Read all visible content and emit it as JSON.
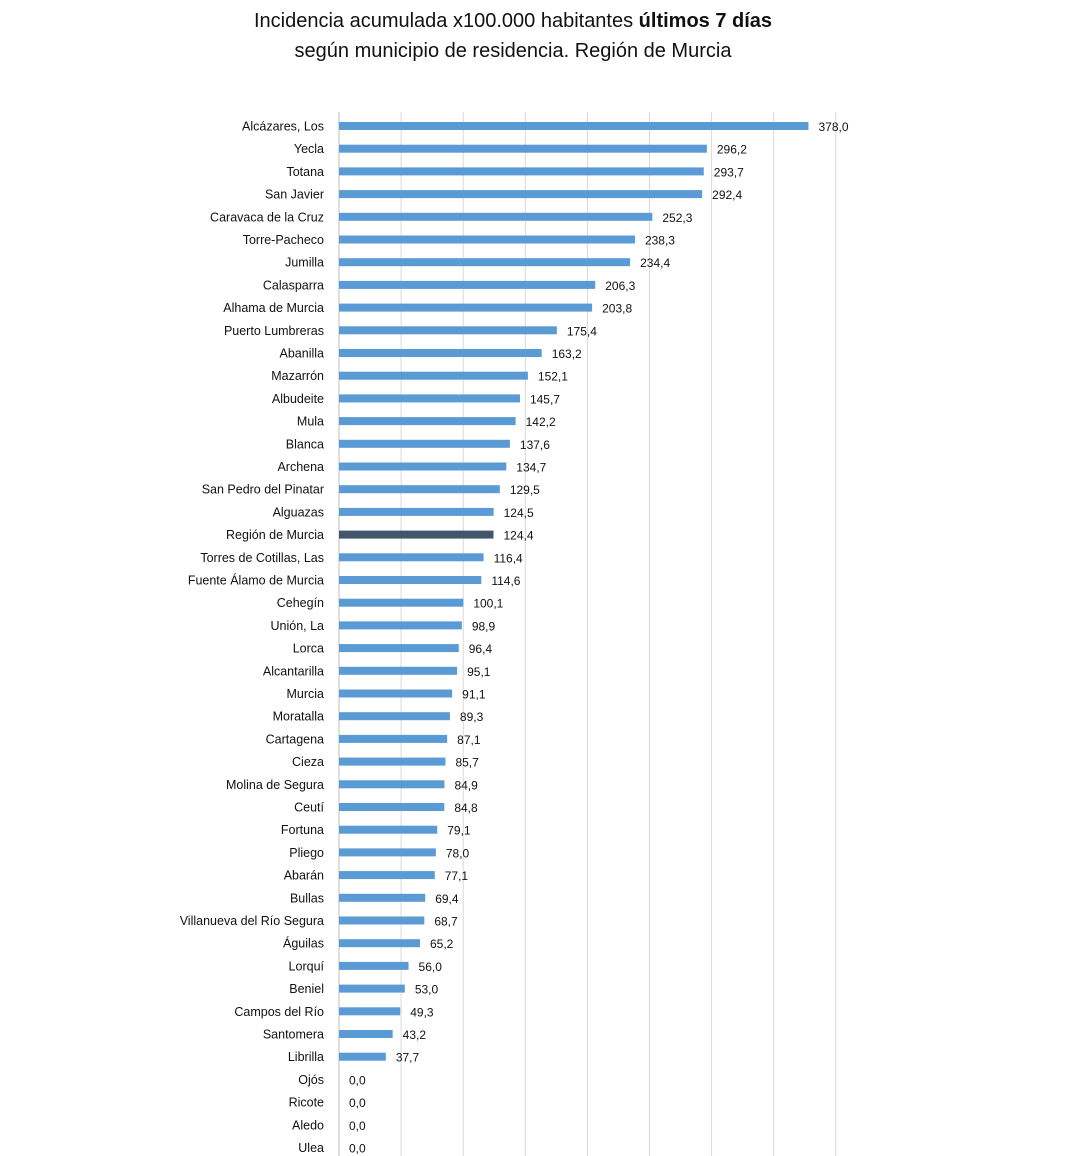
{
  "chart_data": {
    "type": "bar",
    "orientation": "horizontal",
    "title": {
      "prefix": "Incidencia acumulada x100.000 habitantes ",
      "bold": "últimos 7 días",
      "line2": "según municipio de residencia. Región de Murcia"
    },
    "xlabel": "",
    "ylabel": "",
    "xlim": [
      0,
      400
    ],
    "grid": true,
    "highlight_category": "Región de Murcia",
    "colors": {
      "bar": "#5b9bd5",
      "highlight": "#44546a",
      "grid": "#d9d9d9"
    },
    "categories": [
      "Alcázares, Los",
      "Yecla",
      "Totana",
      "San Javier",
      "Caravaca de la Cruz",
      "Torre-Pacheco",
      "Jumilla",
      "Calasparra",
      "Alhama de Murcia",
      "Puerto Lumbreras",
      "Abanilla",
      "Mazarrón",
      "Albudeite",
      "Mula",
      "Blanca",
      "Archena",
      "San Pedro del Pinatar",
      "Alguazas",
      "Región de Murcia",
      "Torres de Cotillas, Las",
      "Fuente Álamo de Murcia",
      "Cehegín",
      "Unión, La",
      "Lorca",
      "Alcantarilla",
      "Murcia",
      "Moratalla",
      "Cartagena",
      "Cieza",
      "Molina de Segura",
      "Ceutí",
      "Fortuna",
      "Pliego",
      "Abarán",
      "Bullas",
      "Villanueva del Río Segura",
      "Águilas",
      "Lorquí",
      "Beniel",
      "Campos del Río",
      "Santomera",
      "Librilla",
      "Ojós",
      "Ricote",
      "Aledo",
      "Ulea"
    ],
    "values": [
      378.0,
      296.2,
      293.7,
      292.4,
      252.3,
      238.3,
      234.4,
      206.3,
      203.8,
      175.4,
      163.2,
      152.1,
      145.7,
      142.2,
      137.6,
      134.7,
      129.5,
      124.5,
      124.4,
      116.4,
      114.6,
      100.1,
      98.9,
      96.4,
      95.1,
      91.1,
      89.3,
      87.1,
      85.7,
      84.9,
      84.8,
      79.1,
      78.0,
      77.1,
      69.4,
      68.7,
      65.2,
      56.0,
      53.0,
      49.3,
      43.2,
      37.7,
      0.0,
      0.0,
      0.0,
      0.0
    ],
    "labels": [
      "378,0",
      "296,2",
      "293,7",
      "292,4",
      "252,3",
      "238,3",
      "234,4",
      "206,3",
      "203,8",
      "175,4",
      "163,2",
      "152,1",
      "145,7",
      "142,2",
      "137,6",
      "134,7",
      "129,5",
      "124,5",
      "124,4",
      "116,4",
      "114,6",
      "100,1",
      "98,9",
      "96,4",
      "95,1",
      "91,1",
      "89,3",
      "87,1",
      "85,7",
      "84,9",
      "84,8",
      "79,1",
      "78,0",
      "77,1",
      "69,4",
      "68,7",
      "65,2",
      "56,0",
      "53,0",
      "49,3",
      "43,2",
      "37,7",
      "0,0",
      "0,0",
      "0,0",
      "0,0"
    ]
  }
}
